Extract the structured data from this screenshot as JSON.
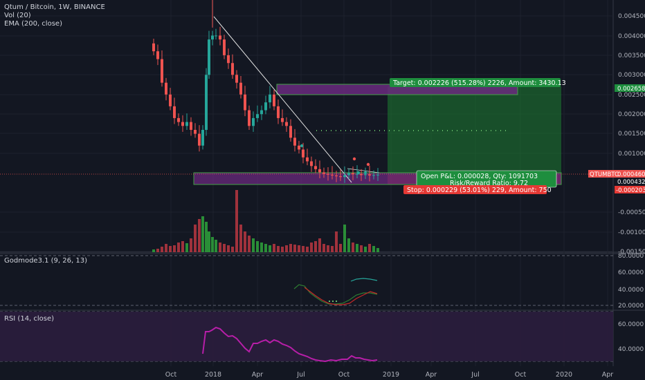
{
  "legend": {
    "title": "Qtum / Bitcoin, 1W, BINANCE",
    "vol": "Vol (20)",
    "ema": "EMA (200, close)",
    "godmode": "Godmode3.1 (9, 26, 13)",
    "rsi": "RSI (14, close)"
  },
  "symbol_tag": "QTUMBTC",
  "colors": {
    "background": "#131722",
    "up": "#26a69a",
    "down": "#ef5350",
    "up_vol": "#2e9b3a",
    "down_vol": "#b0353f",
    "target": "#1e7d32",
    "stop": "#e53935",
    "rsi": "#b71ea8",
    "zone": "#6a2a7e"
  },
  "labels": {
    "target": "Target: 0.002226 (515.28%) 2226, Amount: 3430.13",
    "open_pl": "Open P&L: 0.000028, Qty: 1091703",
    "risk_reward": "Risk/Reward Ratio: 9.72",
    "stop": "Stop: 0.000229 (53.01%) 229, Amount: 750"
  },
  "price_tags": {
    "target": "0.002658",
    "last": "0.000460",
    "entry": "0.000432",
    "stop": "-0.000203"
  },
  "price_axis": [
    "0.004500",
    "0.004000",
    "0.003500",
    "0.003000",
    "0.002500",
    "0.002000",
    "0.001500",
    "0.001000",
    "-0.000500",
    "-0.001000",
    "-0.001500"
  ],
  "godmode_axis": [
    "80.0000",
    "60.0000",
    "40.0000",
    "20.0000"
  ],
  "rsi_axis": [
    "60.0000",
    "40.0000"
  ],
  "x_axis": [
    "Oct",
    "2018",
    "Apr",
    "Jul",
    "Oct",
    "2019",
    "Apr",
    "Jul",
    "Oct",
    "2020",
    "Apr"
  ],
  "chart_data": [
    {
      "type": "candlestick",
      "title": "Qtum / Bitcoin, 1W, BINANCE",
      "ylim": [
        -0.0015,
        0.0047
      ],
      "x": [
        "2017-09",
        "2017-10",
        "2017-11",
        "2017-12",
        "2018-01",
        "2018-02",
        "2018-03",
        "2018-04",
        "2018-05",
        "2018-06",
        "2018-07",
        "2018-08",
        "2018-09",
        "2018-10",
        "2018-11"
      ],
      "approx_close": [
        0.0033,
        0.0022,
        0.0017,
        0.0039,
        0.0035,
        0.0025,
        0.0019,
        0.0023,
        0.0018,
        0.0013,
        0.00085,
        0.00055,
        0.00048,
        0.00046,
        0.00045
      ],
      "last": 0.00046
    },
    {
      "type": "bar",
      "title": "Vol (20)"
    },
    {
      "type": "line",
      "title": "Godmode3.1 (9, 26, 13)",
      "ylim": [
        15,
        80
      ]
    },
    {
      "type": "line",
      "title": "RSI (14, close)",
      "ylim": [
        25,
        75
      ],
      "bands": [
        70,
        30
      ]
    }
  ]
}
